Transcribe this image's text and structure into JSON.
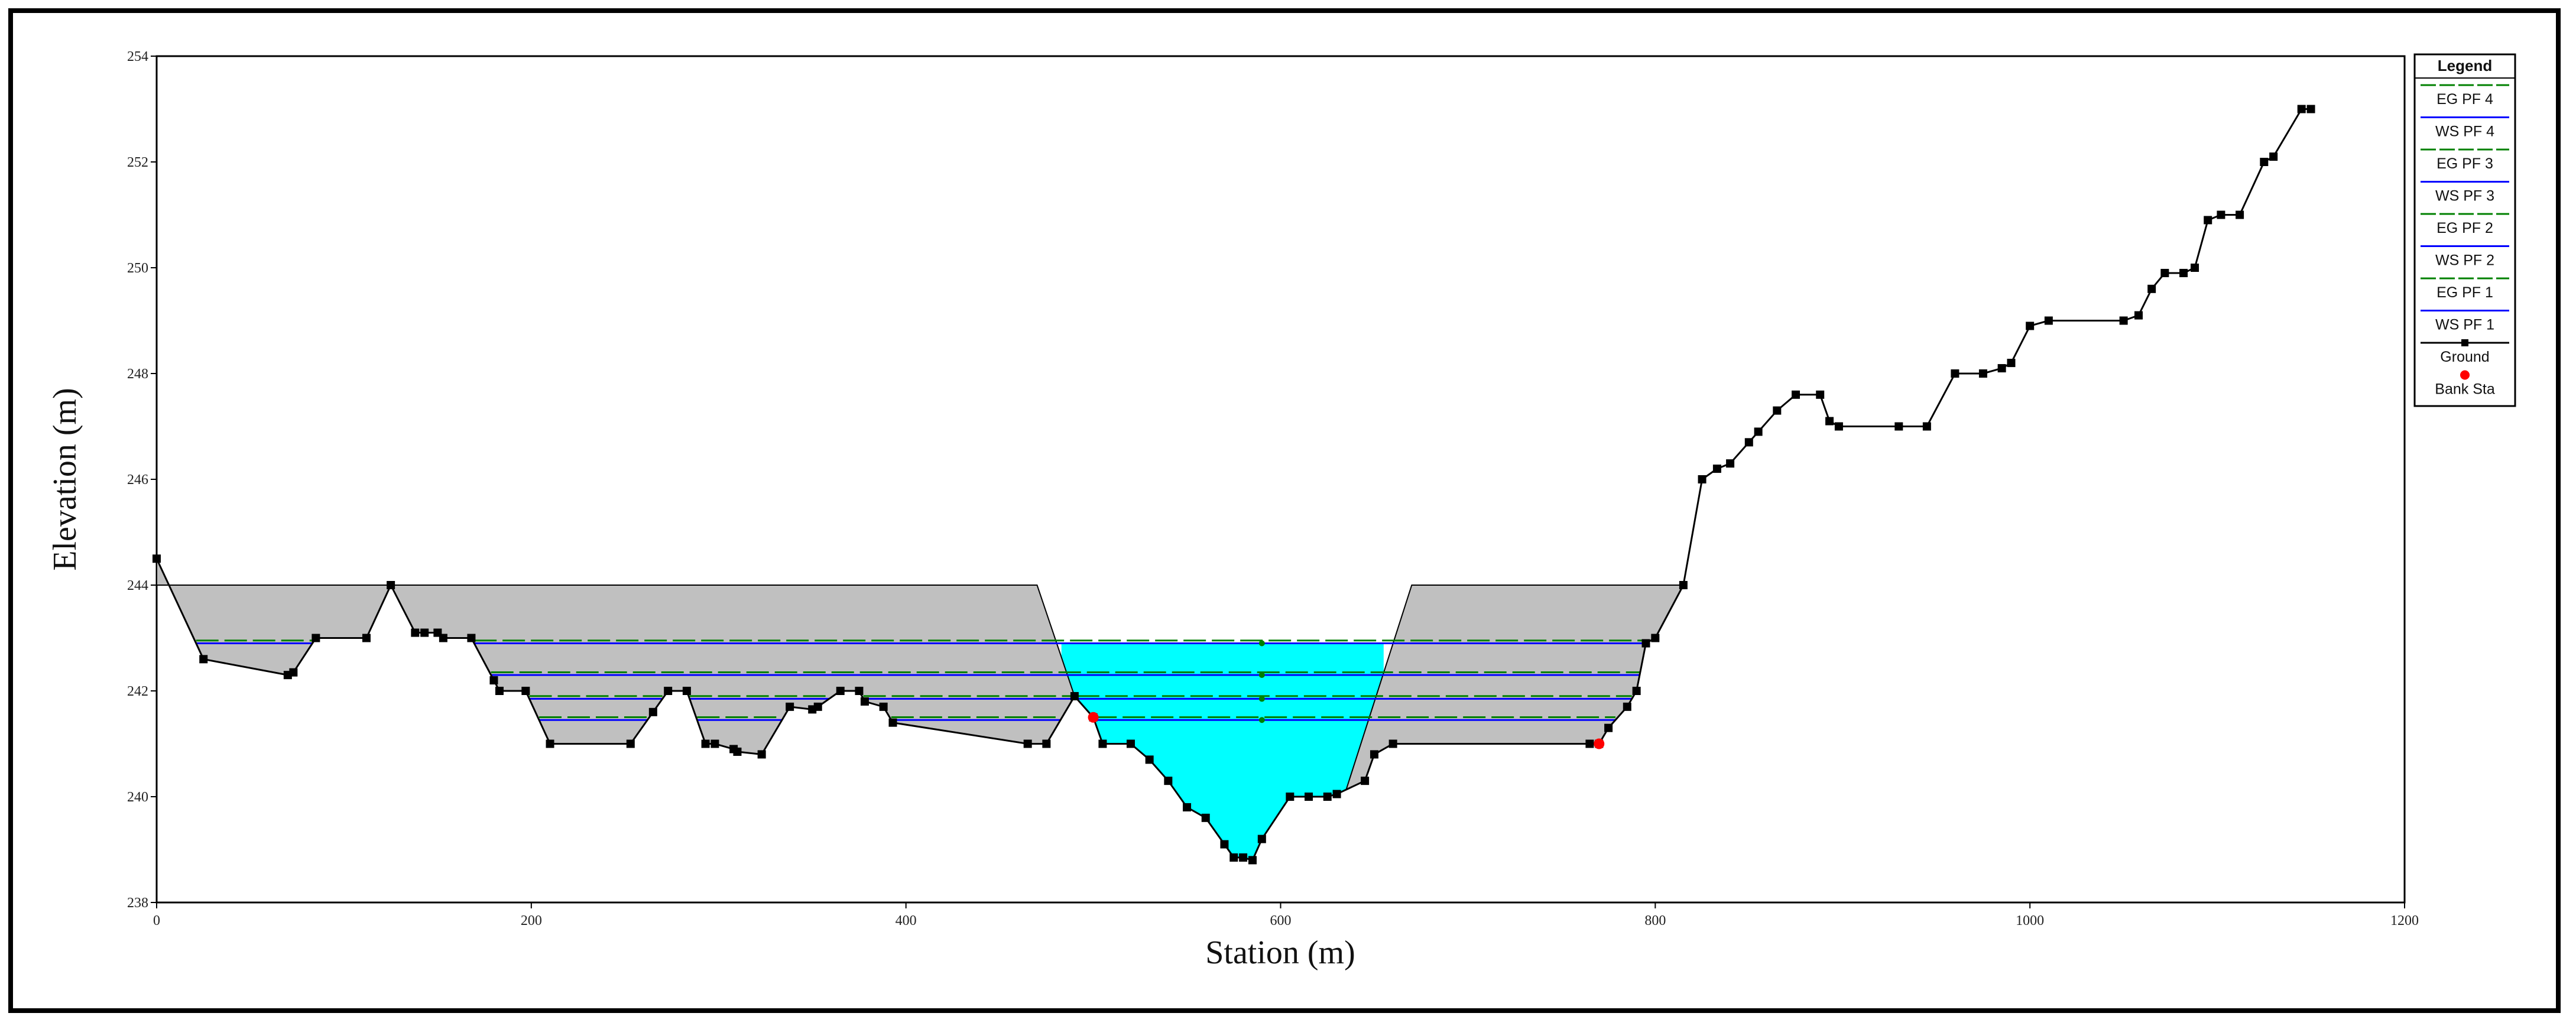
{
  "chart_data": {
    "type": "area",
    "xlabel": "Station (m)",
    "ylabel": "Elevation (m)",
    "xlim": [
      0,
      1200
    ],
    "ylim": [
      238,
      254
    ],
    "xticks": [
      0,
      200,
      400,
      600,
      800,
      1000,
      1200
    ],
    "yticks": [
      238,
      240,
      242,
      244,
      246,
      248,
      250,
      252,
      254
    ],
    "grid": false,
    "legend_placement": "right",
    "legend_title": "Legend",
    "colors": {
      "ground": "#000000",
      "water": "#00ffff",
      "ineffective": "#c0c0c0",
      "eg_line": "#008000",
      "ws_line": "#0000ff",
      "bank": "#ff0000"
    },
    "ground": {
      "name": "Ground",
      "x": [
        0,
        25,
        70,
        73,
        85,
        112,
        125,
        138,
        143,
        150,
        153,
        168,
        180,
        183,
        197,
        210,
        253,
        265,
        273,
        283,
        293,
        298,
        308,
        310,
        323,
        338,
        350,
        353,
        365,
        375,
        378,
        388,
        393,
        465,
        475,
        490,
        500,
        505,
        520,
        530,
        540,
        550,
        560,
        570,
        575,
        580,
        585,
        590,
        605,
        615,
        625,
        630,
        645,
        650,
        660,
        765,
        770,
        775,
        785,
        790,
        795,
        800,
        815,
        825,
        833,
        840,
        850,
        855,
        865,
        875,
        888,
        893,
        898,
        930,
        945,
        960,
        975,
        985,
        990,
        1000,
        1010,
        1050,
        1058,
        1065,
        1072,
        1082,
        1088,
        1095,
        1102,
        1112,
        1125,
        1130,
        1145,
        1150
      ],
      "y": [
        244.5,
        242.6,
        242.3,
        242.35,
        243.0,
        243.0,
        244.0,
        243.1,
        243.1,
        243.1,
        243.0,
        243.0,
        242.2,
        242.0,
        242.0,
        241.0,
        241.0,
        241.6,
        242.0,
        242.0,
        241.0,
        241.0,
        240.9,
        240.85,
        240.8,
        241.7,
        241.65,
        241.7,
        242.0,
        242.0,
        241.8,
        241.7,
        241.4,
        241.0,
        241.0,
        241.9,
        241.5,
        241.0,
        241.0,
        240.7,
        240.3,
        239.8,
        239.6,
        239.1,
        238.85,
        238.85,
        238.8,
        239.2,
        240.0,
        240.0,
        240.0,
        240.05,
        240.3,
        240.8,
        241.0,
        241.0,
        241.0,
        241.3,
        241.7,
        242.0,
        242.9,
        243.0,
        244.0,
        246.0,
        246.2,
        246.3,
        246.7,
        246.9,
        247.3,
        247.6,
        247.6,
        247.1,
        247.0,
        247.0,
        247.0,
        248.0,
        248.0,
        248.1,
        248.2,
        248.9,
        249.0,
        249.0,
        249.1,
        249.6,
        249.9,
        249.9,
        250.0,
        250.9,
        251.0,
        251.0,
        252.0,
        252.1,
        253.0,
        253.0
      ]
    },
    "ineffective_areas": [
      {
        "x": [
          0,
          125,
          140,
          470,
          490
        ],
        "top": 244.0
      },
      {
        "x": [
          670,
          815
        ],
        "top": 244.0
      }
    ],
    "bank_stations": {
      "name": "Bank Sta",
      "points": [
        [
          500,
          241.5
        ],
        [
          770,
          241.0
        ]
      ]
    },
    "water_surfaces": [
      {
        "name": "WS PF 4",
        "elev": 242.9,
        "eg_elev": 242.93,
        "eg_name": "EG PF 4"
      },
      {
        "name": "WS PF 3",
        "elev": 242.3,
        "eg_elev": 242.33,
        "eg_name": "EG PF 3"
      },
      {
        "name": "WS PF 2",
        "elev": 241.85,
        "eg_elev": 241.88,
        "eg_name": "EG PF 2"
      },
      {
        "name": "WS PF 1",
        "elev": 241.45,
        "eg_elev": 241.48,
        "eg_name": "EG PF 1"
      }
    ],
    "legend": [
      "EG PF 4",
      "WS PF 4",
      "EG PF 3",
      "WS PF 3",
      "EG PF 2",
      "WS PF 2",
      "EG PF 1",
      "WS PF 1",
      "Ground",
      "Bank Sta"
    ]
  }
}
